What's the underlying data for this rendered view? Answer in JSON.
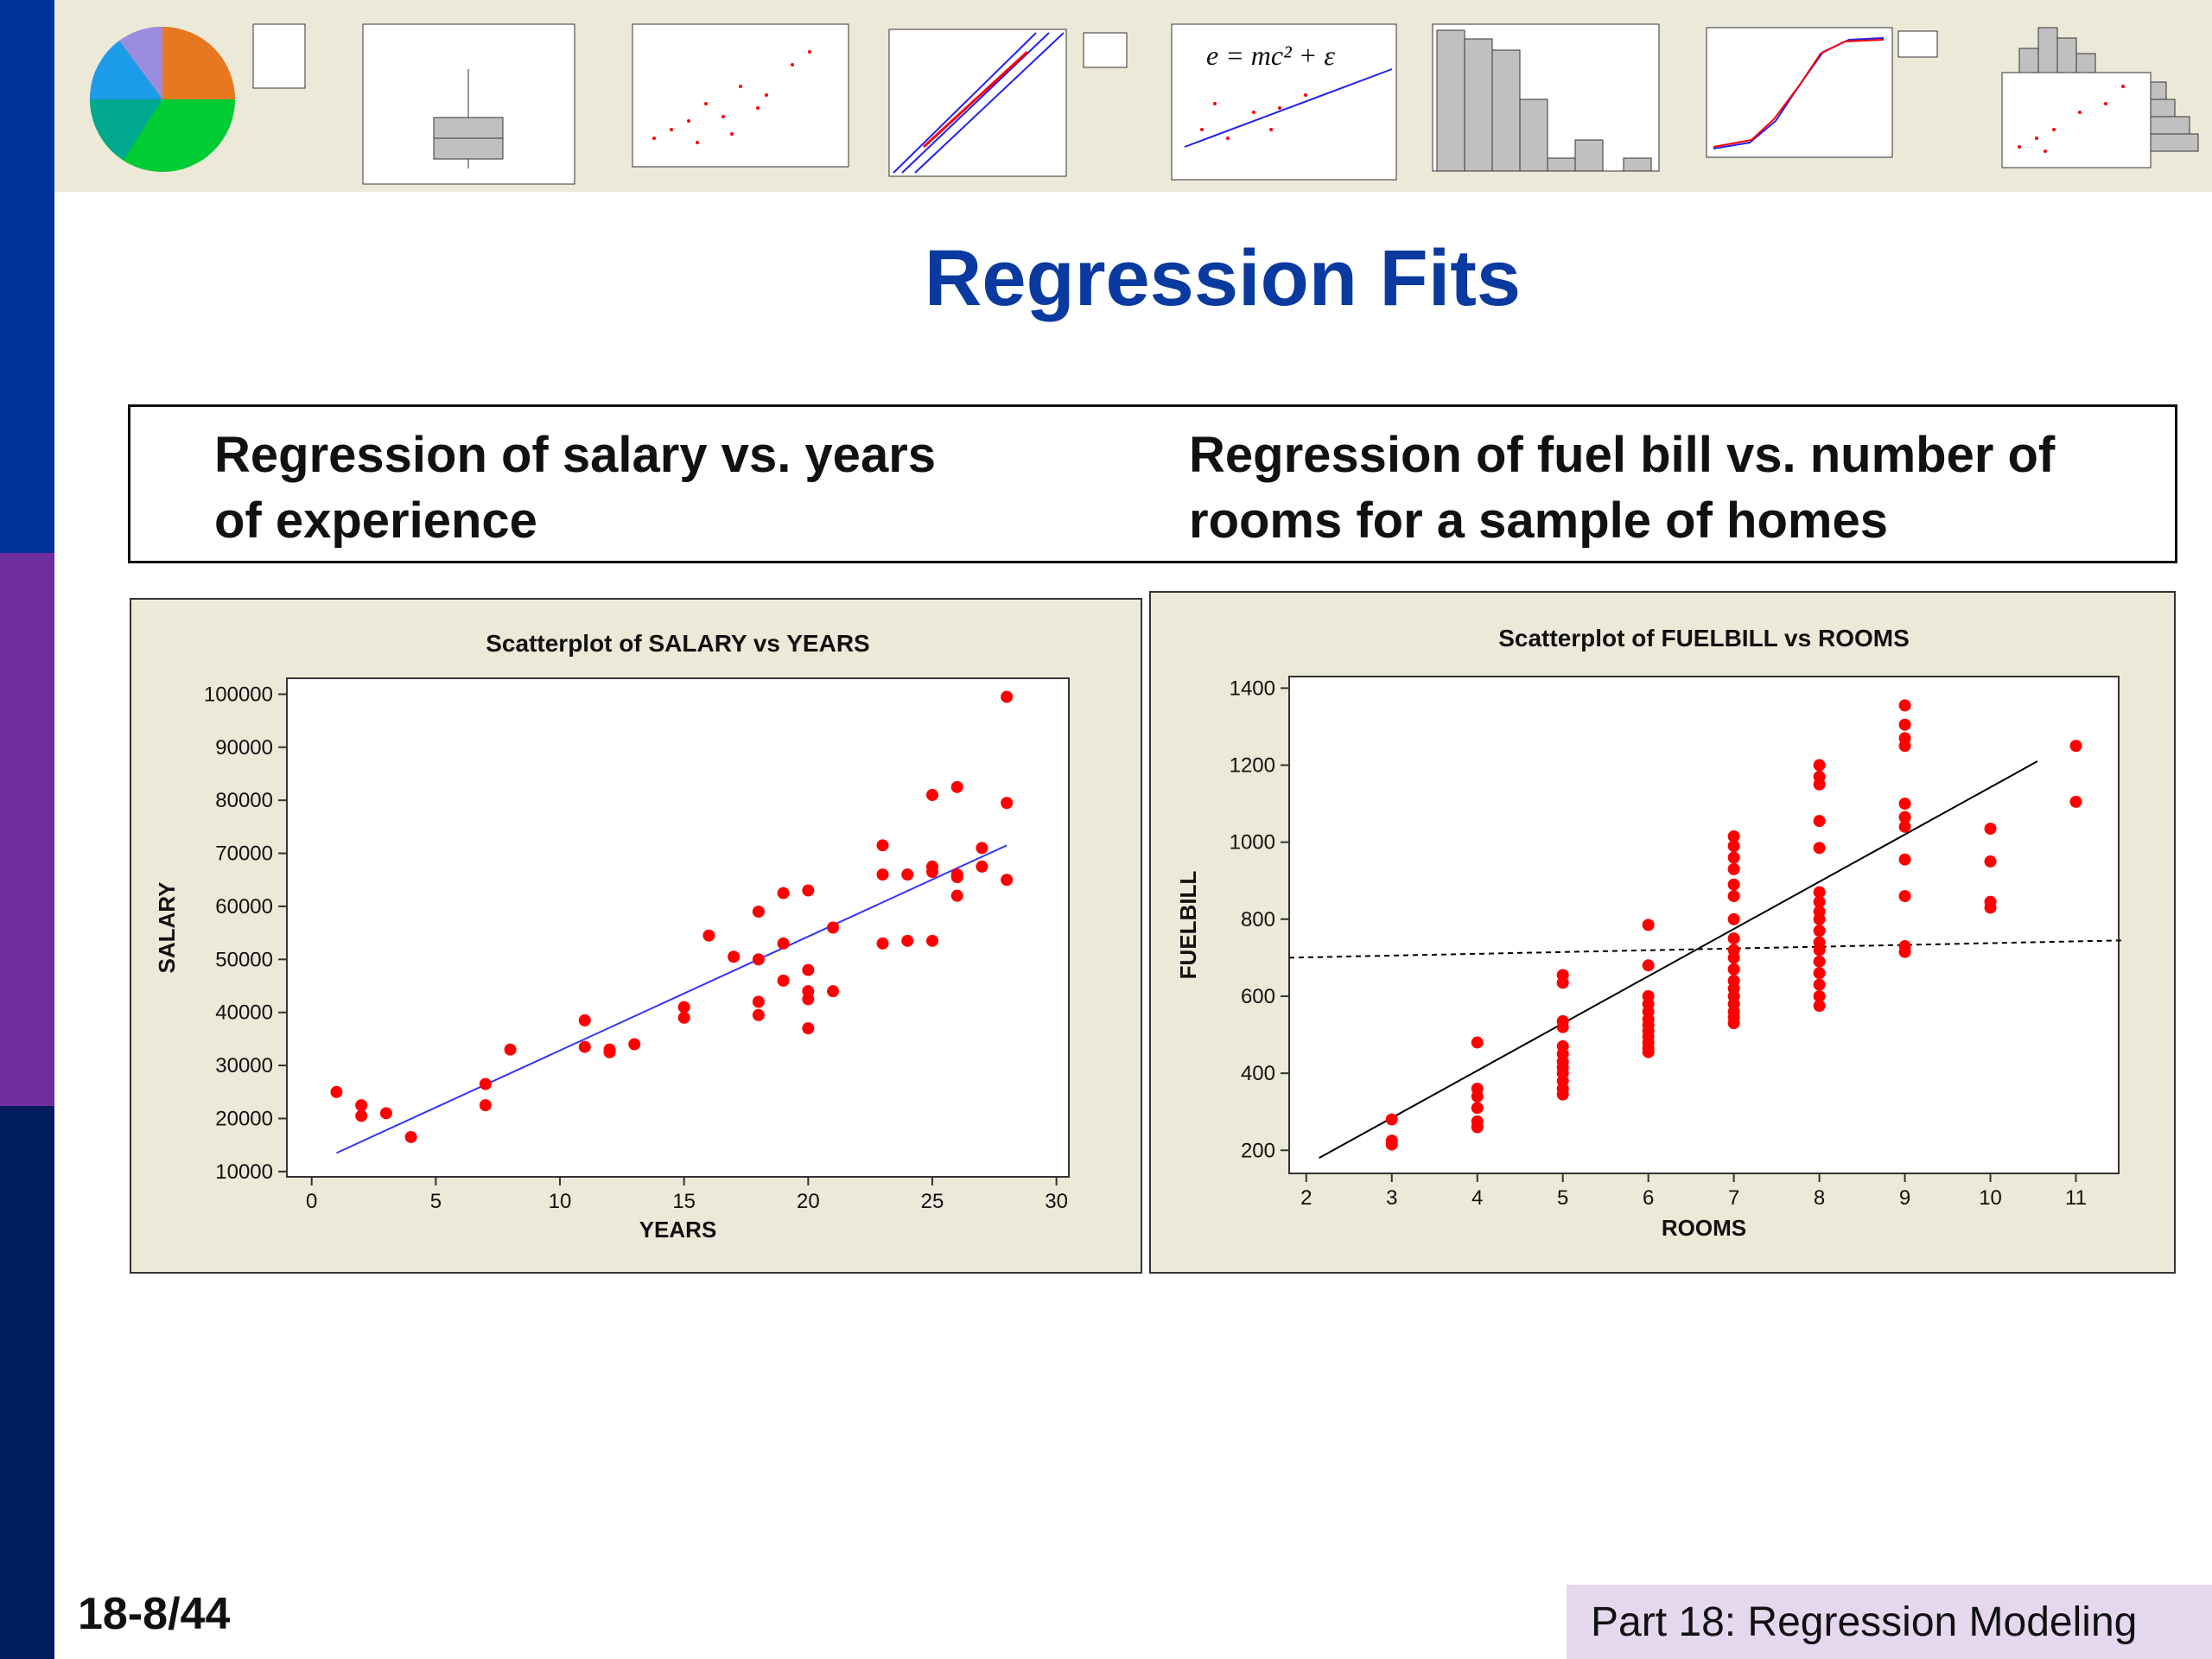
{
  "slide": {
    "title": "Regression Fits",
    "caption_left": "Regression of salary vs. years of experience",
    "caption_right": "Regression of fuel bill vs. number of rooms for a sample of homes",
    "page": "18-8/44",
    "footer": "Part 18: Regression Modeling",
    "formula": "e = mc² + ε"
  },
  "colors": {
    "bar_top": "#003399",
    "bar_mid": "#6e2e9d",
    "bar_bottom": "#001d5e",
    "title": "#0a3aa0",
    "points": "#ff0000",
    "fit_salary": "#3333ff",
    "fit_fuel": "#000000"
  },
  "chart_data": [
    {
      "type": "scatter",
      "title": "Scatterplot of SALARY vs YEARS",
      "xlabel": "YEARS",
      "ylabel": "SALARY",
      "xlim": [
        -1,
        30.5
      ],
      "ylim": [
        9000,
        103000
      ],
      "xticks": [
        0,
        5,
        10,
        15,
        20,
        25,
        30
      ],
      "yticks": [
        10000,
        20000,
        30000,
        40000,
        50000,
        60000,
        70000,
        80000,
        90000,
        100000
      ],
      "grid": false,
      "points": [
        [
          1,
          25000
        ],
        [
          2,
          22500
        ],
        [
          2,
          20500
        ],
        [
          3,
          21000
        ],
        [
          4,
          16500
        ],
        [
          7,
          26500
        ],
        [
          7,
          22500
        ],
        [
          8,
          33000
        ],
        [
          11,
          38500
        ],
        [
          11,
          33500
        ],
        [
          12,
          32500
        ],
        [
          12,
          33000
        ],
        [
          13,
          34000
        ],
        [
          15,
          41000
        ],
        [
          15,
          39000
        ],
        [
          16,
          54500
        ],
        [
          17,
          50500
        ],
        [
          18,
          59000
        ],
        [
          18,
          50000
        ],
        [
          18,
          42000
        ],
        [
          18,
          39500
        ],
        [
          19,
          62500
        ],
        [
          19,
          53000
        ],
        [
          19,
          46000
        ],
        [
          20,
          63000
        ],
        [
          20,
          48000
        ],
        [
          20,
          44000
        ],
        [
          20,
          42500
        ],
        [
          20,
          37000
        ],
        [
          21,
          56000
        ],
        [
          21,
          44000
        ],
        [
          23,
          71500
        ],
        [
          23,
          66000
        ],
        [
          23,
          53000
        ],
        [
          24,
          66000
        ],
        [
          24,
          53500
        ],
        [
          25,
          81000
        ],
        [
          25,
          67500
        ],
        [
          25,
          66500
        ],
        [
          25,
          53500
        ],
        [
          26,
          82500
        ],
        [
          26,
          66000
        ],
        [
          26,
          65500
        ],
        [
          26,
          62000
        ],
        [
          27,
          71000
        ],
        [
          27,
          67500
        ],
        [
          28,
          99500
        ],
        [
          28,
          79500
        ],
        [
          28,
          65000
        ]
      ],
      "fit": {
        "style": "solid",
        "color": "#3333ff",
        "x": [
          1,
          28
        ],
        "y": [
          13500,
          71500
        ]
      }
    },
    {
      "type": "scatter",
      "title": "Scatterplot of FUELBILL vs ROOMS",
      "xlabel": "ROOMS",
      "ylabel": "FUELBILL",
      "xlim": [
        1.8,
        11.5
      ],
      "ylim": [
        140,
        1430
      ],
      "xticks": [
        2,
        3,
        4,
        5,
        6,
        7,
        8,
        9,
        10,
        11
      ],
      "yticks": [
        200,
        400,
        600,
        800,
        1000,
        1200,
        1400
      ],
      "grid": false,
      "points": [
        [
          3,
          280
        ],
        [
          3,
          225
        ],
        [
          3,
          215
        ],
        [
          4,
          480
        ],
        [
          4,
          360
        ],
        [
          4,
          340
        ],
        [
          4,
          310
        ],
        [
          4,
          275
        ],
        [
          4,
          260
        ],
        [
          5,
          655
        ],
        [
          5,
          635
        ],
        [
          5,
          535
        ],
        [
          5,
          520
        ],
        [
          5,
          470
        ],
        [
          5,
          450
        ],
        [
          5,
          430
        ],
        [
          5,
          415
        ],
        [
          5,
          400
        ],
        [
          5,
          380
        ],
        [
          5,
          360
        ],
        [
          5,
          345
        ],
        [
          6,
          785
        ],
        [
          6,
          680
        ],
        [
          6,
          600
        ],
        [
          6,
          580
        ],
        [
          6,
          560
        ],
        [
          6,
          540
        ],
        [
          6,
          525
        ],
        [
          6,
          510
        ],
        [
          6,
          495
        ],
        [
          6,
          480
        ],
        [
          6,
          465
        ],
        [
          6,
          455
        ],
        [
          7,
          1015
        ],
        [
          7,
          990
        ],
        [
          7,
          960
        ],
        [
          7,
          930
        ],
        [
          7,
          890
        ],
        [
          7,
          860
        ],
        [
          7,
          800
        ],
        [
          7,
          750
        ],
        [
          7,
          720
        ],
        [
          7,
          700
        ],
        [
          7,
          670
        ],
        [
          7,
          640
        ],
        [
          7,
          620
        ],
        [
          7,
          600
        ],
        [
          7,
          580
        ],
        [
          7,
          560
        ],
        [
          7,
          545
        ],
        [
          7,
          530
        ],
        [
          8,
          1200
        ],
        [
          8,
          1170
        ],
        [
          8,
          1150
        ],
        [
          8,
          1055
        ],
        [
          8,
          985
        ],
        [
          8,
          870
        ],
        [
          8,
          845
        ],
        [
          8,
          820
        ],
        [
          8,
          800
        ],
        [
          8,
          770
        ],
        [
          8,
          740
        ],
        [
          8,
          720
        ],
        [
          8,
          690
        ],
        [
          8,
          660
        ],
        [
          8,
          630
        ],
        [
          8,
          600
        ],
        [
          8,
          575
        ],
        [
          9,
          1355
        ],
        [
          9,
          1305
        ],
        [
          9,
          1270
        ],
        [
          9,
          1250
        ],
        [
          9,
          1100
        ],
        [
          9,
          1065
        ],
        [
          9,
          1040
        ],
        [
          9,
          955
        ],
        [
          9,
          860
        ],
        [
          9,
          730
        ],
        [
          9,
          715
        ],
        [
          10,
          1035
        ],
        [
          10,
          950
        ],
        [
          10,
          845
        ],
        [
          10,
          830
        ],
        [
          11,
          1250
        ],
        [
          11,
          1105
        ]
      ],
      "fit": {
        "style": "solid",
        "color": "#000000",
        "x": [
          2.15,
          10.55
        ],
        "y": [
          180,
          1210
        ]
      },
      "mean_line": {
        "style": "dashed",
        "color": "#000000",
        "x": [
          1.8,
          11.55
        ],
        "y": [
          700,
          745
        ]
      }
    }
  ]
}
